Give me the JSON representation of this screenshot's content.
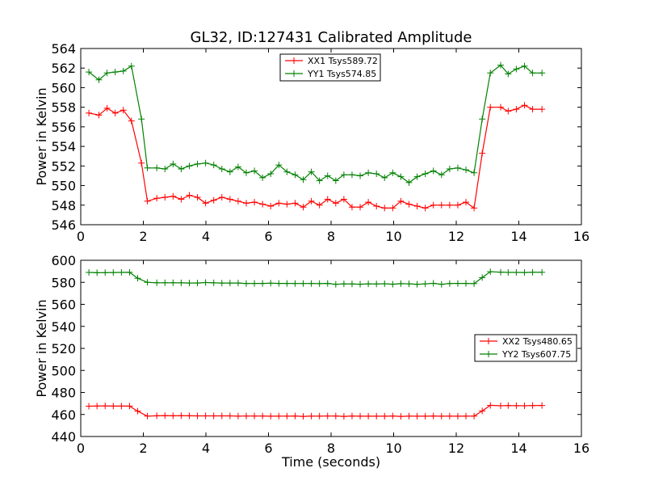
{
  "figure_title": "GL32, ID:127431 Calibrated Amplitude",
  "chart_data": [
    {
      "type": "line",
      "title": "GL32, ID:127431 Calibrated Amplitude",
      "xlabel": "",
      "ylabel": "Power in Kelvin",
      "xlim": [
        0,
        16
      ],
      "ylim": [
        546,
        564
      ],
      "xticks": [
        "0",
        "2",
        "4",
        "6",
        "8",
        "10",
        "12",
        "14",
        "16"
      ],
      "yticks": [
        "546",
        "548",
        "550",
        "552",
        "554",
        "556",
        "558",
        "560",
        "562",
        "564"
      ],
      "grid": false,
      "legend_position": "upper-center",
      "x": [
        0.26,
        0.58,
        0.84,
        1.1,
        1.36,
        1.62,
        1.94,
        2.13,
        2.43,
        2.69,
        2.95,
        3.21,
        3.47,
        3.73,
        3.99,
        4.25,
        4.51,
        4.77,
        5.03,
        5.29,
        5.55,
        5.81,
        6.07,
        6.33,
        6.59,
        6.85,
        7.11,
        7.37,
        7.63,
        7.89,
        8.15,
        8.41,
        8.67,
        8.93,
        9.19,
        9.45,
        9.71,
        9.97,
        10.23,
        10.49,
        10.75,
        11.01,
        11.27,
        11.53,
        11.79,
        12.05,
        12.31,
        12.57,
        12.83,
        13.09,
        13.42,
        13.66,
        13.92,
        14.18,
        14.44,
        14.74
      ],
      "series": [
        {
          "name": "XX1 Tsys589.72",
          "color": "#ff0000",
          "values": [
            557.4,
            557.2,
            557.9,
            557.4,
            557.7,
            556.6,
            552.3,
            548.4,
            548.7,
            548.8,
            548.9,
            548.6,
            549.0,
            548.8,
            548.2,
            548.5,
            548.8,
            548.6,
            548.4,
            548.2,
            548.3,
            548.1,
            547.9,
            548.2,
            548.1,
            548.2,
            547.8,
            548.4,
            548.0,
            548.6,
            548.2,
            548.6,
            547.8,
            547.8,
            548.3,
            547.9,
            547.7,
            547.7,
            548.4,
            548.1,
            547.9,
            547.7,
            548.0,
            548.0,
            548.0,
            548.0,
            548.3,
            547.7,
            553.3,
            558.0,
            558.0,
            557.6,
            557.8,
            558.2,
            557.8,
            557.8
          ]
        },
        {
          "name": "YY1 Tsys574.85",
          "color": "#008000",
          "values": [
            561.6,
            560.8,
            561.5,
            561.6,
            561.7,
            562.2,
            556.8,
            551.8,
            551.8,
            551.7,
            552.2,
            551.7,
            552.0,
            552.2,
            552.3,
            552.1,
            551.7,
            551.4,
            551.9,
            551.3,
            551.5,
            550.8,
            551.2,
            552.1,
            551.4,
            551.1,
            550.6,
            551.4,
            550.5,
            551.0,
            550.5,
            551.1,
            551.1,
            551.0,
            551.3,
            551.2,
            550.8,
            551.3,
            550.9,
            550.3,
            550.9,
            551.2,
            551.5,
            551.1,
            551.7,
            551.8,
            551.6,
            551.3,
            556.8,
            561.5,
            562.3,
            561.4,
            561.9,
            562.2,
            561.5,
            561.5
          ]
        }
      ]
    },
    {
      "type": "line",
      "title": "",
      "xlabel": "Time (seconds)",
      "ylabel": "Power in Kelvin",
      "xlim": [
        0,
        16
      ],
      "ylim": [
        440,
        600
      ],
      "xticks": [
        "0",
        "2",
        "4",
        "6",
        "8",
        "10",
        "12",
        "14",
        "16"
      ],
      "yticks": [
        "440",
        "460",
        "480",
        "500",
        "520",
        "540",
        "560",
        "580",
        "600"
      ],
      "grid": false,
      "legend_position": "right",
      "x": [
        0.26,
        0.52,
        0.78,
        1.04,
        1.3,
        1.56,
        1.82,
        2.13,
        2.43,
        2.69,
        2.95,
        3.21,
        3.47,
        3.73,
        3.99,
        4.25,
        4.51,
        4.77,
        5.03,
        5.29,
        5.55,
        5.81,
        6.07,
        6.33,
        6.59,
        6.85,
        7.11,
        7.37,
        7.63,
        7.89,
        8.15,
        8.41,
        8.67,
        8.93,
        9.19,
        9.45,
        9.71,
        9.97,
        10.23,
        10.49,
        10.75,
        11.01,
        11.27,
        11.53,
        11.79,
        12.05,
        12.31,
        12.57,
        12.83,
        13.09,
        13.42,
        13.66,
        13.92,
        14.18,
        14.44,
        14.74
      ],
      "series": [
        {
          "name": "XX2 Tsys480.65",
          "color": "#ff0000",
          "values": [
            467.5,
            467.7,
            467.8,
            467.6,
            467.6,
            467.6,
            463.0,
            458.5,
            458.8,
            459.0,
            458.8,
            458.9,
            458.8,
            458.7,
            458.7,
            458.7,
            458.7,
            458.7,
            458.5,
            458.6,
            458.6,
            458.6,
            458.4,
            458.5,
            458.5,
            458.6,
            458.3,
            458.5,
            458.5,
            458.6,
            458.6,
            458.3,
            458.6,
            458.4,
            458.4,
            458.4,
            458.4,
            458.6,
            458.3,
            458.5,
            458.4,
            458.4,
            458.6,
            458.4,
            458.5,
            458.4,
            458.5,
            458.5,
            463.2,
            468.3,
            467.9,
            468.1,
            468.0,
            467.9,
            468.1,
            468.2
          ]
        },
        {
          "name": "YY2 Tsys607.75",
          "color": "#008000",
          "values": [
            589.0,
            588.7,
            588.8,
            588.9,
            589.0,
            589.1,
            583.7,
            580.0,
            579.6,
            579.6,
            579.6,
            579.5,
            579.4,
            579.4,
            579.8,
            579.5,
            579.3,
            579.4,
            579.4,
            578.9,
            579.0,
            579.0,
            579.2,
            579.0,
            579.0,
            578.9,
            578.9,
            578.9,
            578.8,
            579.0,
            578.2,
            578.6,
            578.5,
            578.3,
            578.6,
            578.5,
            578.7,
            578.3,
            578.8,
            578.6,
            578.2,
            578.6,
            579.1,
            578.2,
            578.9,
            579.0,
            579.0,
            578.8,
            584.3,
            589.6,
            589.2,
            589.0,
            589.0,
            588.9,
            589.1,
            589.1
          ]
        }
      ]
    }
  ]
}
